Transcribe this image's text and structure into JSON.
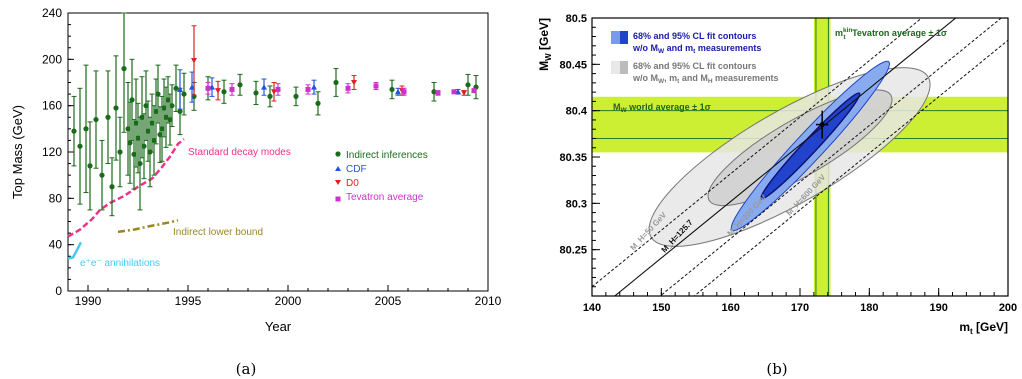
{
  "captions": {
    "a": "(a)",
    "b": "(b)"
  },
  "colors": {
    "indirect": "#1a6b1a",
    "cdf": "#2255dd",
    "d0": "#dd2222",
    "tevatron": "#cc33cc",
    "standard_decay": "#ee3388",
    "lower_bound": "#998822",
    "ee": "#44ccee",
    "band_green": "#ccee33",
    "blue_fill": "#7799ee",
    "blue_dark": "#2244cc",
    "gray_fill": "#dddddd"
  },
  "chart_data": [
    {
      "type": "scatter",
      "title": "",
      "xlabel": "Year",
      "ylabel": "Top Mass (GeV)",
      "xlim": [
        1989,
        2010
      ],
      "ylim": [
        0,
        240
      ],
      "xticks": [
        "1990",
        "1995",
        "2000",
        "2005",
        "2010"
      ],
      "yticks": [
        "0",
        "40",
        "80",
        "120",
        "160",
        "200",
        "240"
      ],
      "legend": {
        "placement": "right",
        "entries": [
          "Indirect inferences",
          "CDF",
          "D0",
          "Tevatron average"
        ]
      },
      "annotations": [
        "Standard decay modes",
        "Indirect lower bound",
        "e⁺e⁻ annihilations"
      ],
      "series": [
        {
          "name": "Indirect inferences",
          "points": [
            [
              1989.3,
              138,
              30
            ],
            [
              1989.6,
              125,
              50
            ],
            [
              1989.9,
              140,
              55
            ],
            [
              1990.1,
              108,
              38
            ],
            [
              1990.4,
              148,
              42
            ],
            [
              1990.7,
              100,
              30
            ],
            [
              1991.0,
              150,
              40
            ],
            [
              1991.2,
              90,
              25
            ],
            [
              1991.4,
              158,
              45
            ],
            [
              1991.6,
              120,
              30
            ],
            [
              1991.8,
              192,
              55
            ],
            [
              1992.0,
              140,
              40
            ],
            [
              1992.1,
              128,
              35
            ],
            [
              1992.2,
              165,
              35
            ],
            [
              1992.3,
              118,
              30
            ],
            [
              1992.4,
              145,
              38
            ],
            [
              1992.5,
              132,
              30
            ],
            [
              1992.6,
              110,
              40
            ],
            [
              1992.7,
              150,
              35
            ],
            [
              1992.8,
              125,
              28
            ],
            [
              1992.9,
              160,
              30
            ],
            [
              1993.0,
              138,
              26
            ],
            [
              1993.1,
              120,
              30
            ],
            [
              1993.2,
              145,
              25
            ],
            [
              1993.3,
              130,
              30
            ],
            [
              1993.4,
              155,
              28
            ],
            [
              1993.5,
              170,
              25
            ],
            [
              1993.6,
              135,
              24
            ],
            [
              1993.7,
              140,
              28
            ],
            [
              1993.8,
              158,
              25
            ],
            [
              1993.9,
              150,
              26
            ],
            [
              1994.0,
              165,
              20
            ],
            [
              1994.1,
              148,
              22
            ],
            [
              1994.2,
              160,
              18
            ],
            [
              1994.4,
              175,
              20
            ],
            [
              1994.6,
              155,
              20
            ],
            [
              1994.8,
              170,
              18
            ],
            [
              1995.3,
              168,
              12
            ],
            [
              1996.0,
              175,
              10
            ],
            [
              1996.8,
              172,
              10
            ],
            [
              1997.6,
              178,
              9
            ],
            [
              1998.4,
              171,
              10
            ],
            [
              1999.1,
              168,
              9
            ],
            [
              2000.4,
              168,
              8
            ],
            [
              2001.5,
              162,
              10
            ],
            [
              2002.4,
              180,
              12
            ],
            [
              2005.2,
              174,
              8
            ],
            [
              2007.3,
              172,
              8
            ],
            [
              2009.0,
              178,
              9
            ],
            [
              2009.4,
              176,
              10
            ]
          ]
        },
        {
          "name": "CDF",
          "points": [
            [
              1994.6,
              174,
              17
            ],
            [
              1995.2,
              176,
              13
            ],
            [
              1996.2,
              176,
              8
            ],
            [
              1998.8,
              176,
              7
            ],
            [
              2001.3,
              176,
              6
            ],
            [
              2005.5,
              172,
              3
            ],
            [
              2008.5,
              172,
              2
            ]
          ]
        },
        {
          "name": "D0",
          "points": [
            [
              1995.3,
              199,
              30
            ],
            [
              1996.5,
              173,
              8
            ],
            [
              1999.3,
              172,
              8
            ],
            [
              2003.3,
              180,
              6
            ],
            [
              2005.7,
              173,
              4
            ],
            [
              2008.8,
              171,
              2
            ]
          ]
        },
        {
          "name": "Tevatron average",
          "points": [
            [
              1996.0,
              175,
              5
            ],
            [
              1997.2,
              174,
              5
            ],
            [
              1999.5,
              174,
              5
            ],
            [
              2001.0,
              174,
              4
            ],
            [
              2003.0,
              175,
              4
            ],
            [
              2004.4,
              177,
              3
            ],
            [
              2005.8,
              172,
              3
            ],
            [
              2007.5,
              171,
              2
            ],
            [
              2008.3,
              172,
              1.5
            ],
            [
              2009.3,
              173,
              1.3
            ]
          ]
        },
        {
          "name": "Standard decay modes",
          "line": [
            [
              1989,
              47
            ],
            [
              1989.6,
              53
            ],
            [
              1990.2,
              62
            ],
            [
              1990.6,
              70
            ],
            [
              1991.1,
              76
            ],
            [
              1991.8,
              82
            ],
            [
              1992.5,
              90
            ],
            [
              1993.2,
              97
            ],
            [
              1993.7,
              107
            ],
            [
              1994.1,
              116
            ],
            [
              1994.5,
              127
            ],
            [
              1994.8,
              131
            ]
          ]
        },
        {
          "name": "Indirect lower bound",
          "line": [
            [
              1991.5,
              51
            ],
            [
              1992.3,
              53
            ],
            [
              1993.1,
              56
            ],
            [
              1994.0,
              59
            ],
            [
              1994.5,
              61
            ]
          ]
        },
        {
          "name": "e⁺e⁻ annihilations",
          "line": [
            [
              1989.0,
              28
            ],
            [
              1989.25,
              29
            ],
            [
              1989.5,
              37
            ],
            [
              1989.65,
              42
            ]
          ]
        }
      ]
    },
    {
      "type": "contour",
      "title": "",
      "xlabel": "m_t [GeV]",
      "ylabel": "M_W [GeV]",
      "xlim": [
        140,
        200
      ],
      "ylim": [
        80.2,
        80.5
      ],
      "xticks": [
        "140",
        "150",
        "160",
        "170",
        "180",
        "190",
        "200"
      ],
      "yticks": [
        "80.25",
        "80.3",
        "80.35",
        "80.4",
        "80.45",
        "80.5"
      ],
      "legend": {
        "placement": "top-left",
        "entries": [
          "68% and 95% CL fit contours w/o M_W and m_t measurements",
          "68% and 95% CL fit contours w/o M_W, m_t and M_H measurements"
        ]
      },
      "bands": {
        "mw_world_average": {
          "label": "M_W world average ± 1σ",
          "center": 80.385,
          "sigma": 0.015
        },
        "mt_tevatron_average": {
          "label": "m_t^kin Tevatron average ± 1σ",
          "center": 173.2,
          "sigma": 0.9
        }
      },
      "measurement_point": {
        "mt": 173.2,
        "mw": 80.385,
        "err_mw": 0.015,
        "err_mt": 0.9
      },
      "higgs_lines": [
        {
          "label": "M_H=50 GeV",
          "slope": 0.0061,
          "intercept_at_140": 80.21
        },
        {
          "label": "M_H=125.7",
          "slope": 0.0061,
          "intercept_at_140": 80.18
        },
        {
          "label": "M_H=300 GeV",
          "slope": 0.0061,
          "intercept_at_140": 80.14
        },
        {
          "label": "M_H=600 GeV",
          "slope": 0.0061,
          "intercept_at_140": 80.11
        }
      ],
      "contours": [
        {
          "name": "gray 95% CL",
          "center": [
            168.5,
            80.35
          ],
          "orientation_deg": 30
        },
        {
          "name": "gray 68% CL",
          "center": [
            170,
            80.36
          ],
          "orientation_deg": 30
        },
        {
          "name": "blue 95% CL",
          "center": [
            171.5,
            80.362
          ],
          "orientation_deg": 47
        },
        {
          "name": "blue 68% CL",
          "center": [
            171.5,
            80.362
          ],
          "orientation_deg": 47
        }
      ]
    }
  ],
  "panel_a": {
    "xlabel": "Year",
    "ylabel": "Top Mass (GeV)",
    "legend": [
      "Indirect inferences",
      "CDF",
      "D0",
      "Tevatron average"
    ],
    "ann_std": "Standard decay modes",
    "ann_lower": "Indirect lower bound",
    "ann_ee": "e⁺e⁻ annihilations"
  },
  "panel_b": {
    "xlabel_main": "m",
    "xlabel_sub": "t",
    "xlabel_unit": " [GeV]",
    "ylabel_main": "M",
    "ylabel_sub": "W",
    "ylabel_unit": " [GeV]",
    "leg1_line1": "68% and 95% CL fit contours",
    "leg1_line2_a": "w/o M",
    "leg1_line2_b": "W",
    "leg1_line2_c": " and m",
    "leg1_line2_d": "t",
    "leg1_line2_e": " measurements",
    "leg2_line1": "68% and 95% CL fit contours",
    "leg2_line2_a": "w/o M",
    "leg2_line2_b": "W",
    "leg2_line2_c": ", m",
    "leg2_line2_d": "t",
    "leg2_line2_e": " and M",
    "leg2_line2_f": "H",
    "leg2_line2_g": " measurements",
    "mw_band_a": "M",
    "mw_band_b": "W",
    "mw_band_c": " world average ± 1σ",
    "mt_band_a": "m",
    "mt_band_b": "t",
    "mt_band_sup": "kin",
    "mt_band_c": " Tevatron average ± 1σ",
    "higgs_labels": [
      "M_H=50 GeV",
      "M_H=125.7",
      "M_H=300 GeV",
      "M_H=600 GeV"
    ]
  }
}
